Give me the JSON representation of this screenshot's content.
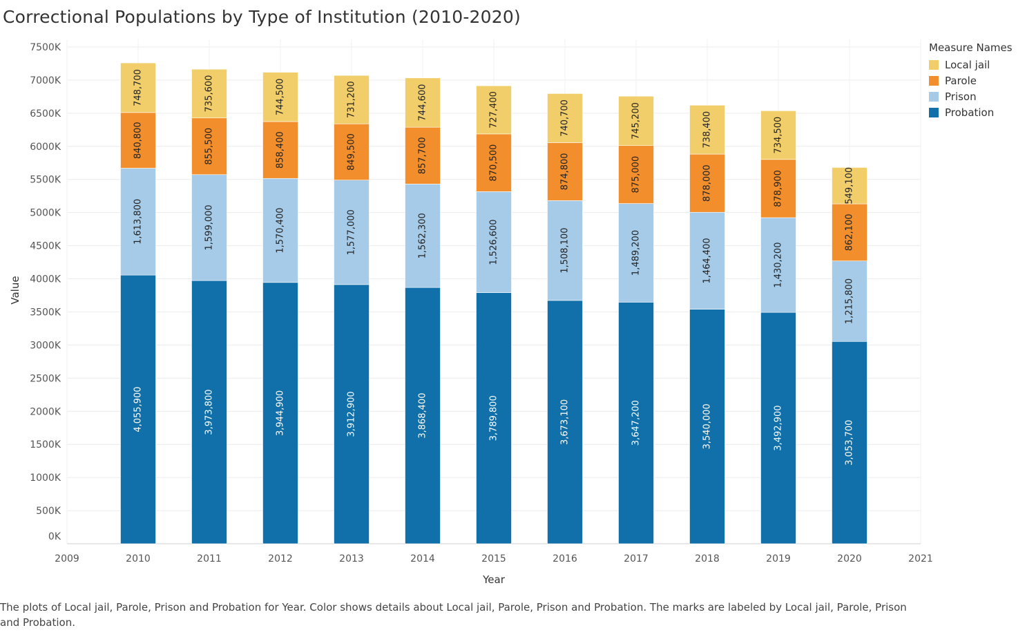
{
  "title": "Correctional Populations by Type of Institution (2010-2020)",
  "caption": "The plots of Local jail, Parole, Prison and Probation for Year.  Color shows details about Local jail, Parole, Prison and Probation.  The marks are labeled by Local jail, Parole, Prison and Probation.",
  "legend": {
    "title": "Measure Names",
    "items": [
      {
        "label": "Local jail",
        "color": "#f1ce6a"
      },
      {
        "label": "Parole",
        "color": "#f28e2b"
      },
      {
        "label": "Prison",
        "color": "#a5cbe8"
      },
      {
        "label": "Probation",
        "color": "#1170aa"
      }
    ]
  },
  "chart_data": {
    "type": "bar",
    "stacked": true,
    "title": "Correctional Populations by Type of Institution (2010-2020)",
    "xlabel": "Year",
    "ylabel": "Value",
    "categories": [
      2010,
      2011,
      2012,
      2013,
      2014,
      2015,
      2016,
      2017,
      2018,
      2019,
      2020
    ],
    "x_ticks": [
      "2009",
      "2010",
      "2011",
      "2012",
      "2013",
      "2014",
      "2015",
      "2016",
      "2017",
      "2018",
      "2019",
      "2020",
      "2021"
    ],
    "xlim": [
      2009,
      2021
    ],
    "ylim": [
      0,
      7500000
    ],
    "y_ticks": [
      {
        "value": 0,
        "label": "0K"
      },
      {
        "value": 500000,
        "label": "500K"
      },
      {
        "value": 1000000,
        "label": "1000K"
      },
      {
        "value": 1500000,
        "label": "1500K"
      },
      {
        "value": 2000000,
        "label": "2000K"
      },
      {
        "value": 2500000,
        "label": "2500K"
      },
      {
        "value": 3000000,
        "label": "3000K"
      },
      {
        "value": 3500000,
        "label": "3500K"
      },
      {
        "value": 4000000,
        "label": "4000K"
      },
      {
        "value": 4500000,
        "label": "4500K"
      },
      {
        "value": 5000000,
        "label": "5000K"
      },
      {
        "value": 5500000,
        "label": "5500K"
      },
      {
        "value": 6000000,
        "label": "6000K"
      },
      {
        "value": 6500000,
        "label": "6500K"
      },
      {
        "value": 7000000,
        "label": "7000K"
      },
      {
        "value": 7500000,
        "label": "7500K"
      }
    ],
    "grid": true,
    "legend_position": "right",
    "series": [
      {
        "name": "Probation",
        "color": "#1170aa",
        "values": [
          4055900,
          3973800,
          3944900,
          3912900,
          3868400,
          3789800,
          3673100,
          3647200,
          3540000,
          3492900,
          3053700
        ],
        "labels": [
          "4,055,900",
          "3,973,800",
          "3,944,900",
          "3,912,900",
          "3,868,400",
          "3,789,800",
          "3,673,100",
          "3,647,200",
          "3,540,000",
          "3,492,900",
          "3,053,700"
        ]
      },
      {
        "name": "Prison",
        "color": "#a5cbe8",
        "values": [
          1613800,
          1599000,
          1570400,
          1577000,
          1562300,
          1526600,
          1508100,
          1489200,
          1464400,
          1430200,
          1215800
        ],
        "labels": [
          "1,613,800",
          "1,599,000",
          "1,570,400",
          "1,577,000",
          "1,562,300",
          "1,526,600",
          "1,508,100",
          "1,489,200",
          "1,464,400",
          "1,430,200",
          "1,215,800"
        ]
      },
      {
        "name": "Parole",
        "color": "#f28e2b",
        "values": [
          840800,
          855500,
          858400,
          849500,
          857700,
          870500,
          874800,
          875000,
          878000,
          878900,
          862100
        ],
        "labels": [
          "840,800",
          "855,500",
          "858,400",
          "849,500",
          "857,700",
          "870,500",
          "874,800",
          "875,000",
          "878,000",
          "878,900",
          "862,100"
        ]
      },
      {
        "name": "Local jail",
        "color": "#f1ce6a",
        "values": [
          748700,
          735600,
          744500,
          731200,
          744600,
          727400,
          740700,
          745200,
          738400,
          734500,
          549100
        ],
        "labels": [
          "748,700",
          "735,600",
          "744,500",
          "731,200",
          "744,600",
          "727,400",
          "740,700",
          "745,200",
          "738,400",
          "734,500",
          "549,100"
        ]
      }
    ]
  }
}
